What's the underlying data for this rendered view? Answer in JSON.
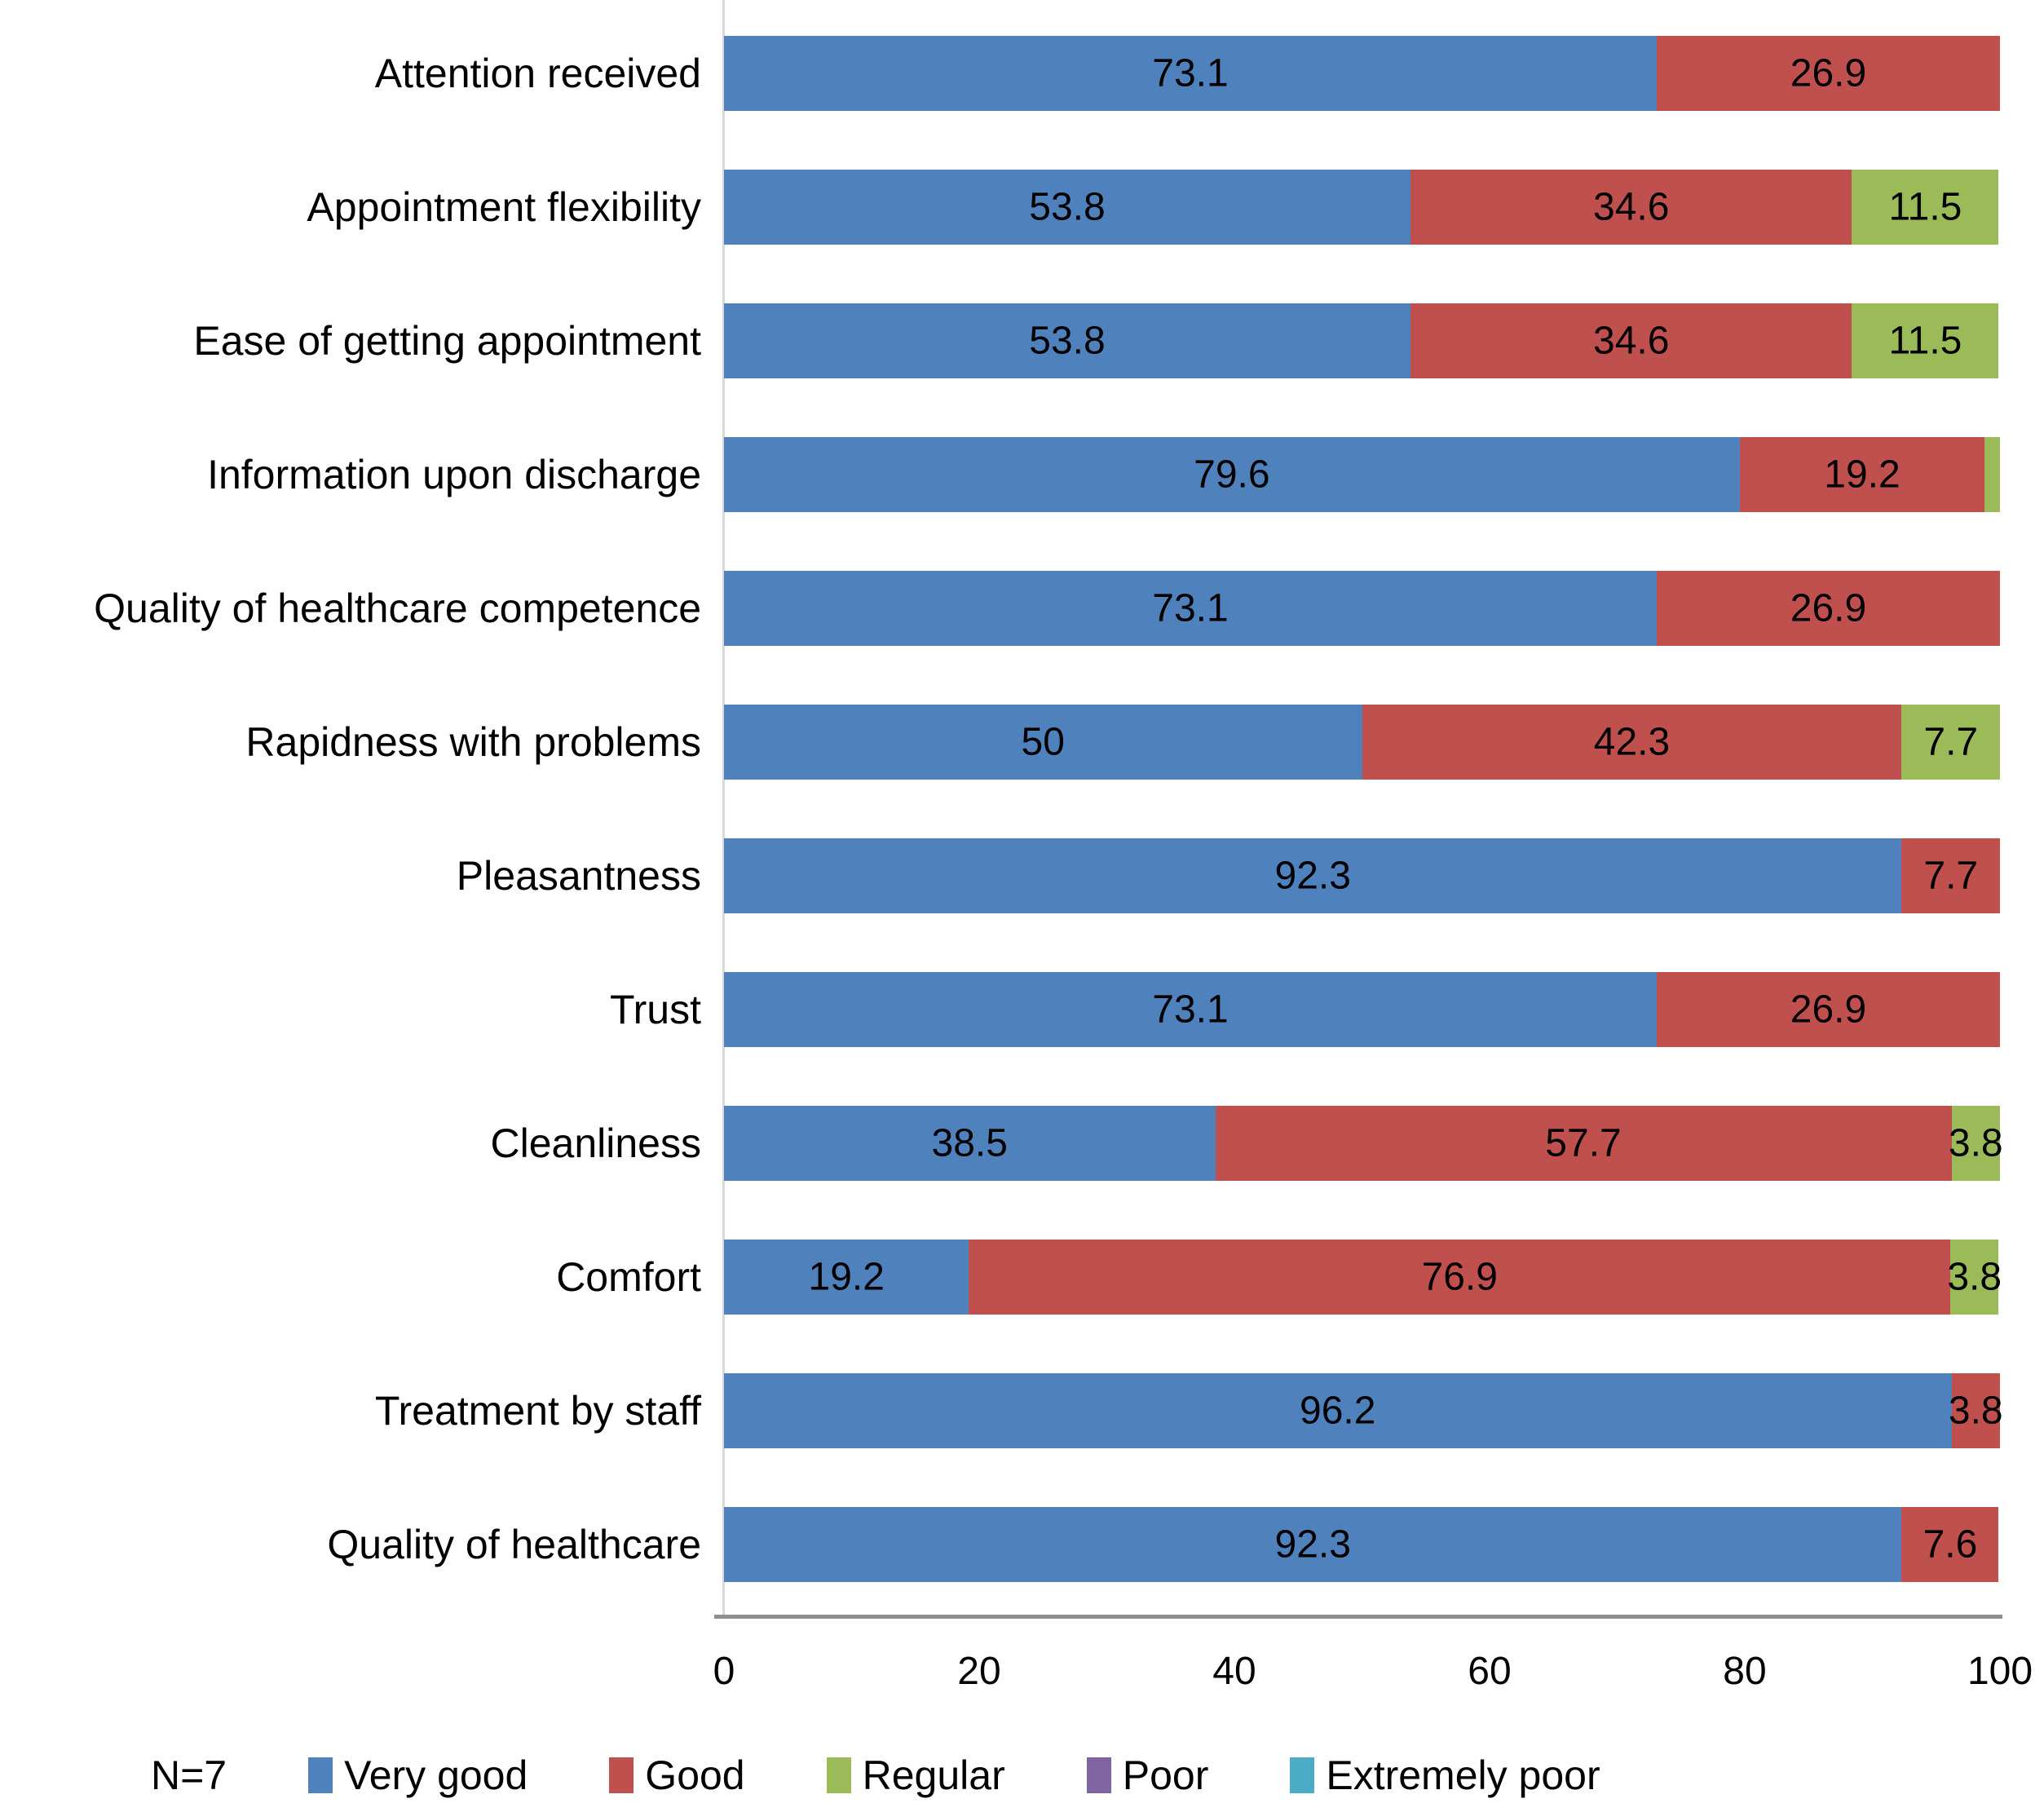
{
  "chart_data": {
    "type": "bar",
    "orientation": "horizontal",
    "stacked": true,
    "title": "",
    "xlabel": "",
    "ylabel": "",
    "xlim": [
      0,
      100
    ],
    "x_ticks": [
      "0",
      "20",
      "40",
      "60",
      "80",
      "100"
    ],
    "grid": false,
    "legend_position": "bottom",
    "sample_size_label": "N=7",
    "categories": [
      "Attention received",
      "Appointment flexibility",
      "Ease of getting appointment",
      "Information upon discharge",
      "Quality of healthcare competence",
      "Rapidness with problems",
      "Pleasantness",
      "Trust",
      "Cleanliness",
      "Comfort",
      "Treatment by staff",
      "Quality of healthcare"
    ],
    "series": [
      {
        "name": "Very good",
        "color": "#4F81BD",
        "values": [
          73.1,
          53.8,
          53.8,
          79.6,
          73.1,
          50,
          92.3,
          73.1,
          38.5,
          19.2,
          96.2,
          92.3
        ],
        "labels": [
          "73.1",
          "53.8",
          "53.8",
          "79.6",
          "73.1",
          "50",
          "92.3",
          "73.1",
          "38.5",
          "19.2",
          "96.2",
          "92.3"
        ]
      },
      {
        "name": "Good",
        "color": "#C0504D",
        "values": [
          26.9,
          34.6,
          34.6,
          19.2,
          26.9,
          42.3,
          7.7,
          26.9,
          57.7,
          76.9,
          3.8,
          7.6
        ],
        "labels": [
          "26.9",
          "34.6",
          "34.6",
          "19.2",
          "26.9",
          "42.3",
          "7.7",
          "26.9",
          "57.7",
          "76.9",
          "3.8",
          "7.6"
        ]
      },
      {
        "name": "Regular",
        "color": "#9BBB59",
        "values": [
          0,
          11.5,
          11.5,
          1.2,
          0,
          7.7,
          0,
          0,
          3.8,
          3.8,
          0,
          0
        ],
        "labels": [
          "",
          "11.5",
          "11.5",
          "",
          "",
          "7.7",
          "",
          "",
          "3.8",
          "3.8",
          "",
          ""
        ]
      },
      {
        "name": "Poor",
        "color": "#8064A2",
        "values": [
          0,
          0,
          0,
          0,
          0,
          0,
          0,
          0,
          0,
          0,
          0,
          0
        ],
        "labels": [
          "",
          "",
          "",
          "",
          "",
          "",
          "",
          "",
          "",
          "",
          "",
          ""
        ]
      },
      {
        "name": "Extremely poor",
        "color": "#4BACC6",
        "values": [
          0,
          0,
          0,
          0,
          0,
          0,
          0,
          0,
          0,
          0,
          0,
          0
        ],
        "labels": [
          "",
          "",
          "",
          "",
          "",
          "",
          "",
          "",
          "",
          "",
          "",
          ""
        ]
      }
    ]
  }
}
